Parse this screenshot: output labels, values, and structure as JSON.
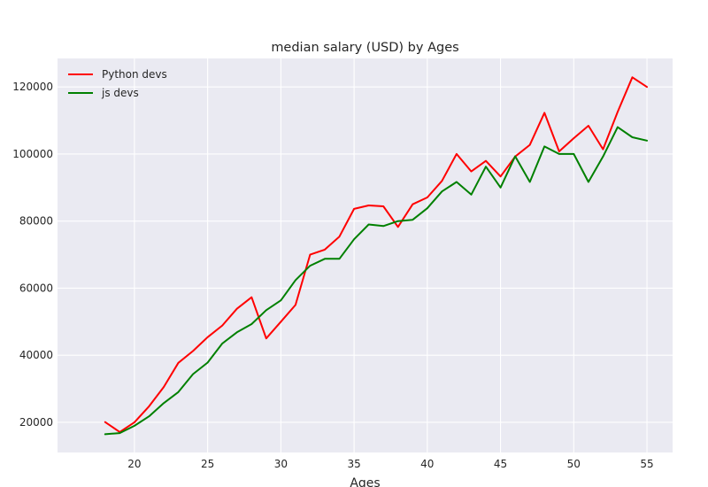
{
  "chart_data": {
    "type": "line",
    "title": "median salary (USD) by Ages",
    "xlabel": "Ages",
    "ylabel": "",
    "x": [
      18,
      19,
      20,
      21,
      22,
      23,
      24,
      25,
      26,
      27,
      28,
      29,
      30,
      31,
      32,
      33,
      34,
      35,
      36,
      37,
      38,
      39,
      40,
      41,
      42,
      43,
      44,
      45,
      46,
      47,
      48,
      49,
      50,
      51,
      52,
      53,
      54,
      55
    ],
    "xticks": [
      20,
      25,
      30,
      35,
      40,
      45,
      50,
      55
    ],
    "xlim": [
      14.75,
      56.75
    ],
    "yticks": [
      20000,
      40000,
      60000,
      80000,
      100000,
      120000
    ],
    "ylim": [
      11000,
      128500
    ],
    "grid": true,
    "background": "#eaeaf2",
    "legend_position": "upper-left",
    "series": [
      {
        "name": "Python devs",
        "color": "#ff0000",
        "values": [
          20046,
          17100,
          20000,
          24744,
          30500,
          37732,
          41247,
          45372,
          48876,
          53850,
          57287,
          45000,
          50000,
          55000,
          70000,
          71496,
          75370,
          83640,
          84666,
          84392,
          78254,
          85000,
          87038,
          91991,
          100000,
          94796,
          97962,
          93302,
          99240,
          102736,
          112285,
          100771,
          104708,
          108423,
          101407,
          112542,
          122870,
          120000
        ]
      },
      {
        "name": "js devs",
        "color": "#008000",
        "values": [
          16446,
          16791,
          18942,
          21780,
          25704,
          29000,
          34372,
          37810,
          43515,
          46823,
          49293,
          53437,
          56373,
          62375,
          66674,
          68745,
          68746,
          74583,
          79000,
          78508,
          79996,
          80403,
          83820,
          88833,
          91660,
          87892,
          96243,
          90000,
          99313,
          91660,
          102264,
          100000,
          100000,
          91660,
          99240,
          108000,
          105000,
          104000
        ]
      }
    ]
  }
}
